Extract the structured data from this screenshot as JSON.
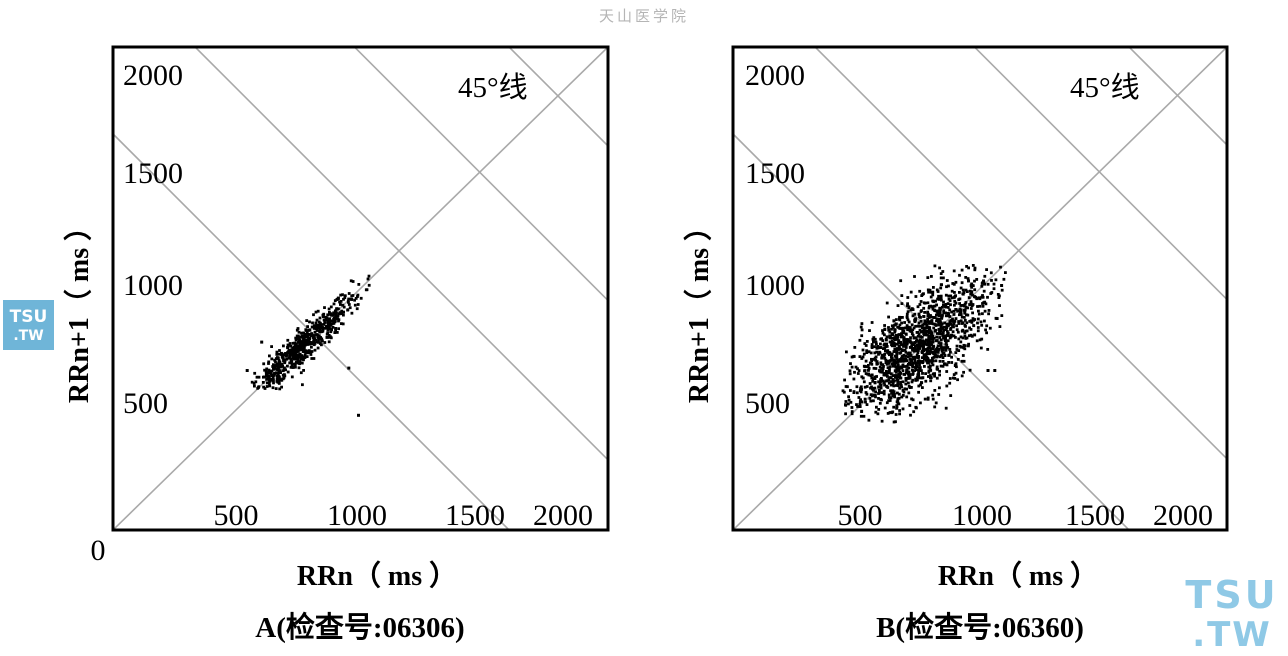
{
  "watermark": "天山医学院",
  "logo": {
    "line1": "TSU",
    "line2": ".TW"
  },
  "chart_data": [
    {
      "type": "scatter",
      "caption": "A(检查号:06306)",
      "xlabel": "RRn（ ms ）",
      "ylabel": "RRn+1（ ms ）",
      "annotation": "45°线",
      "origin_label": "0",
      "x_ticks": [
        500,
        1000,
        1500,
        2000
      ],
      "y_ticks": [
        500,
        1000,
        1500,
        2000
      ],
      "xlim": [
        0,
        2100
      ],
      "ylim": [
        0,
        2100
      ],
      "grid": false,
      "cluster": {
        "center": [
          760,
          730
        ],
        "spread_along": 175,
        "spread_across": 28,
        "range": [
          560,
          1060
        ]
      },
      "outliers": [
        [
          1000,
          450
        ],
        [
          960,
          650
        ],
        [
          870,
          780
        ],
        [
          540,
          640
        ],
        [
          600,
          760
        ]
      ]
    },
    {
      "type": "scatter",
      "caption": "B(检查号:06360)",
      "xlabel": "RRn（ ms ）",
      "ylabel": "RRn+1（ ms ）",
      "annotation": "45°线",
      "origin_label": "",
      "x_ticks": [
        500,
        1000,
        1500,
        2000
      ],
      "y_ticks": [
        500,
        1000,
        1500,
        2000
      ],
      "xlim": [
        0,
        2100
      ],
      "ylim": [
        0,
        2100
      ],
      "grid": false,
      "cluster": {
        "center": [
          720,
          730
        ],
        "spread_along": 190,
        "spread_across": 85,
        "range": [
          420,
          1100
        ]
      },
      "outliers": [
        [
          1050,
          640
        ],
        [
          1020,
          640
        ],
        [
          960,
          830
        ],
        [
          1080,
          1000
        ],
        [
          1000,
          1020
        ],
        [
          1060,
          860
        ]
      ]
    }
  ]
}
